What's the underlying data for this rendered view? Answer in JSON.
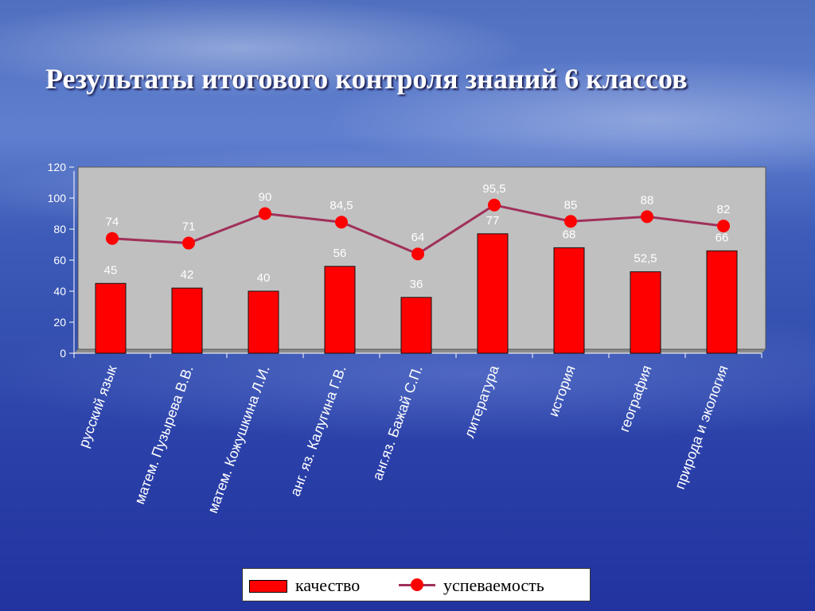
{
  "slide": {
    "title": "Результаты итогового контроля знаний 6 классов"
  },
  "chart_data": {
    "type": "bar",
    "categories": [
      "русский язык",
      "матем. Пузырева В.В.",
      "матем. Кожушкина Л.И.",
      "анг. яз. Калугина Г.В.",
      "анг.яз. Бажай С.П.",
      "литература",
      "история",
      "география",
      "природа и экология"
    ],
    "series": [
      {
        "name": "качество",
        "type": "bar",
        "values": [
          45,
          42,
          40,
          56,
          36,
          77,
          68,
          52.5,
          66
        ],
        "labels": [
          "45",
          "42",
          "40",
          "56",
          "36",
          "77",
          "68",
          "52,5",
          "66"
        ]
      },
      {
        "name": "успеваемость",
        "type": "line",
        "values": [
          74,
          71,
          90,
          84.5,
          64,
          95.5,
          85,
          88,
          82
        ],
        "labels": [
          "74",
          "71",
          "90",
          "84,5",
          "64",
          "95,5",
          "85",
          "88",
          "82"
        ]
      }
    ],
    "ylim": [
      0,
      120
    ],
    "yticks": [
      0,
      20,
      40,
      60,
      80,
      100,
      120
    ],
    "title": "",
    "xlabel": "",
    "ylabel": "",
    "grid": false,
    "legend": "bottom",
    "colors": {
      "bar": "#ff0000",
      "line": "#a0305a",
      "marker": "#ff0000",
      "plot_bg": "#c0c0c0",
      "label_text": "#ffffff"
    }
  }
}
